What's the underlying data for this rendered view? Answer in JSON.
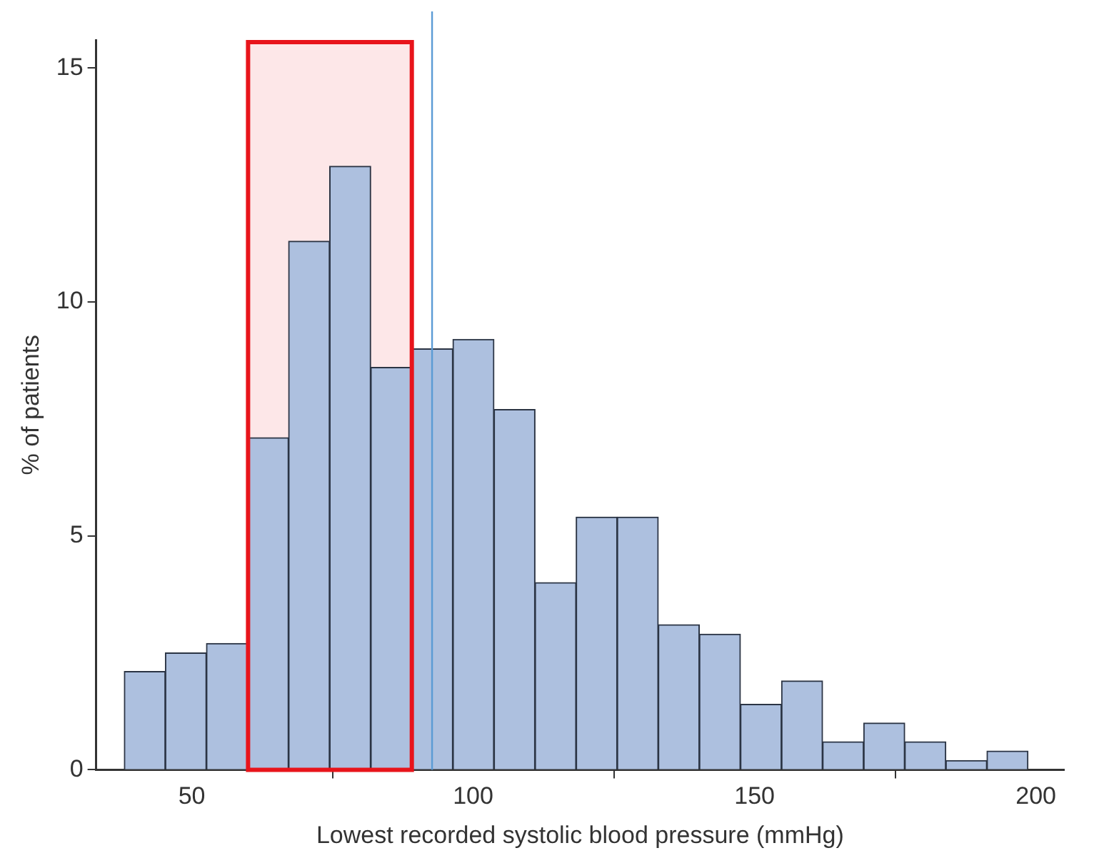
{
  "chart_data": {
    "type": "histogram",
    "xlabel": "Lowest recorded systolic blood pressure (mmHg)",
    "ylabel": "% of patients",
    "bins": [
      38,
      45.3,
      52.6,
      59.9,
      67.2,
      74.5,
      81.8,
      89.1,
      96.4,
      103.7,
      111,
      118.3,
      125.6,
      132.9,
      140.2,
      147.5,
      154.8,
      162.1,
      169.4,
      176.7,
      184,
      191.3,
      198.6
    ],
    "values": [
      2.1,
      2.5,
      2.7,
      7.1,
      11.3,
      12.9,
      8.6,
      9.0,
      9.2,
      7.7,
      4.0,
      5.4,
      5.4,
      3.1,
      2.9,
      1.4,
      1.9,
      0.6,
      1.0,
      0.6,
      0.2,
      0.4
    ],
    "color": "#adc0df",
    "xlim": [
      33,
      205
    ],
    "xticks": [
      50,
      100,
      150,
      200
    ],
    "ylim": [
      0,
      15.6
    ],
    "yticks": [
      0,
      5,
      10,
      15
    ],
    "grid": false,
    "legend": false,
    "bands": [
      {
        "axis": "x",
        "from": 60,
        "to": 89.1,
        "color": "#e8141b"
      }
    ],
    "ref_lines": [
      {
        "axis": "x",
        "value": 92.7,
        "color": "#5b9bd5"
      }
    ]
  }
}
